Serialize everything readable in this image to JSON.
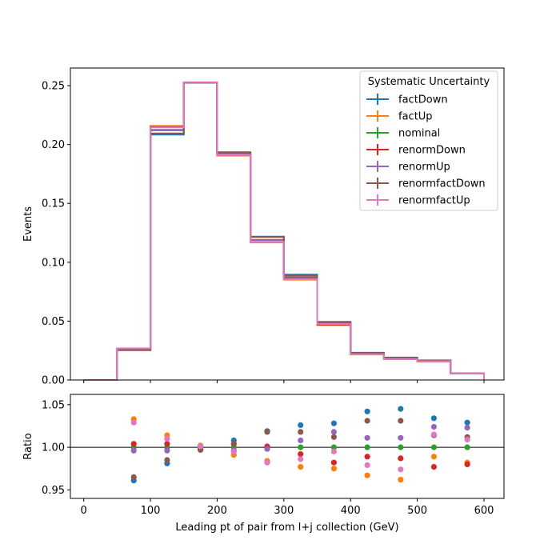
{
  "chart_data": {
    "type": "histogram-with-ratio",
    "xlabel": "Leading pt of pair from l+j collection (GeV)",
    "bin_edges": [
      0,
      50,
      100,
      150,
      200,
      250,
      300,
      350,
      400,
      450,
      500,
      550,
      600
    ],
    "main": {
      "ylabel": "Events",
      "ylim": [
        0,
        0.265
      ],
      "xlim": [
        -20,
        630
      ],
      "yticks": [
        0.0,
        0.05,
        0.1,
        0.15,
        0.2,
        0.25
      ],
      "ytick_labels": [
        "0.00",
        "0.05",
        "0.10",
        "0.15",
        "0.20",
        "0.25"
      ],
      "xticks": [
        0,
        100,
        200,
        300,
        400,
        500,
        600
      ]
    },
    "ratio": {
      "ylabel": "Ratio",
      "ylim": [
        0.94,
        1.062
      ],
      "yticks": [
        0.95,
        1.0,
        1.05
      ],
      "ytick_labels": [
        "0.95",
        "1.00",
        "1.05"
      ],
      "xticks": [
        0,
        100,
        200,
        300,
        400,
        500,
        600
      ],
      "xtick_labels": [
        "0",
        "100",
        "200",
        "300",
        "400",
        "500",
        "600"
      ],
      "reference_line": 1.0
    },
    "legend": {
      "title": "Systematic Uncertainty",
      "placement": "top-right"
    },
    "series": [
      {
        "name": "factDown",
        "color": "#1f77b4",
        "values": [
          0.0,
          0.0255,
          0.2085,
          0.2525,
          0.1935,
          0.1218,
          0.0895,
          0.0495,
          0.0232,
          0.0191,
          0.0167,
          0.0058
        ],
        "ratio_x": [
          75,
          125,
          175,
          225,
          275,
          325,
          375,
          425,
          475,
          525,
          575
        ],
        "ratio": [
          0.961,
          0.981,
          0.997,
          1.008,
          1.019,
          1.026,
          1.028,
          1.042,
          1.045,
          1.034,
          1.029
        ]
      },
      {
        "name": "factUp",
        "color": "#ff7f0e",
        "values": [
          0.0,
          0.0265,
          0.2158,
          0.2528,
          0.1905,
          0.1168,
          0.0852,
          0.0466,
          0.0217,
          0.0177,
          0.0157,
          0.0056
        ],
        "ratio_x": [
          75,
          125,
          175,
          225,
          275,
          325,
          375,
          425,
          475,
          525,
          575
        ],
        "ratio": [
          1.033,
          1.014,
          1.002,
          0.991,
          0.984,
          0.977,
          0.975,
          0.967,
          0.962,
          0.989,
          0.982
        ]
      },
      {
        "name": "nominal",
        "color": "#2ca02c",
        "values": [
          0.0,
          0.0262,
          0.2125,
          0.2528,
          0.192,
          0.119,
          0.0872,
          0.048,
          0.0224,
          0.0184,
          0.0162,
          0.0057
        ],
        "ratio_x": [
          75,
          125,
          175,
          225,
          275,
          325,
          375,
          425,
          475,
          525,
          575
        ],
        "ratio": [
          1.0,
          1.0,
          1.0,
          1.0,
          1.0,
          1.0,
          1.0,
          1.0,
          1.0,
          1.0,
          1.0
        ]
      },
      {
        "name": "renormDown",
        "color": "#d62728",
        "values": [
          0.0,
          0.0263,
          0.215,
          0.2528,
          0.1915,
          0.119,
          0.0865,
          0.0471,
          0.0222,
          0.0182,
          0.0159,
          0.0056
        ],
        "ratio_x": [
          75,
          125,
          175,
          225,
          275,
          325,
          375,
          425,
          475,
          525,
          575
        ],
        "ratio": [
          1.004,
          1.004,
          0.998,
          1.004,
          1.001,
          0.992,
          0.982,
          0.989,
          0.987,
          0.977,
          0.98
        ]
      },
      {
        "name": "renormUp",
        "color": "#9467bd",
        "values": [
          0.0,
          0.0261,
          0.212,
          0.2528,
          0.192,
          0.1188,
          0.088,
          0.0489,
          0.0226,
          0.0186,
          0.0164,
          0.0058
        ],
        "ratio_x": [
          75,
          125,
          175,
          225,
          275,
          325,
          375,
          425,
          475,
          525,
          575
        ],
        "ratio": [
          0.996,
          0.996,
          1.001,
          0.996,
          0.998,
          1.008,
          1.018,
          1.011,
          1.011,
          1.024,
          1.023
        ]
      },
      {
        "name": "renormfactDown",
        "color": "#8c564b",
        "values": [
          0.0,
          0.0253,
          0.2095,
          0.2525,
          0.193,
          0.1215,
          0.089,
          0.0488,
          0.023,
          0.0189,
          0.0165,
          0.0058
        ],
        "ratio_x": [
          75,
          125,
          175,
          225,
          275,
          325,
          375,
          425,
          475,
          525,
          575
        ],
        "ratio": [
          0.965,
          0.985,
          0.997,
          1.004,
          1.018,
          1.018,
          1.012,
          1.031,
          1.031,
          1.014,
          1.012
        ]
      },
      {
        "name": "renormfactUp",
        "color": "#e377c2",
        "values": [
          0.0,
          0.0269,
          0.2145,
          0.253,
          0.1912,
          0.1172,
          0.0858,
          0.0476,
          0.0219,
          0.0179,
          0.016,
          0.0056
        ],
        "ratio_x": [
          75,
          125,
          175,
          225,
          275,
          325,
          375,
          425,
          475,
          525,
          575
        ],
        "ratio": [
          1.029,
          1.01,
          1.001,
          0.995,
          0.982,
          0.986,
          0.995,
          0.979,
          0.974,
          1.015,
          1.009
        ]
      }
    ]
  }
}
